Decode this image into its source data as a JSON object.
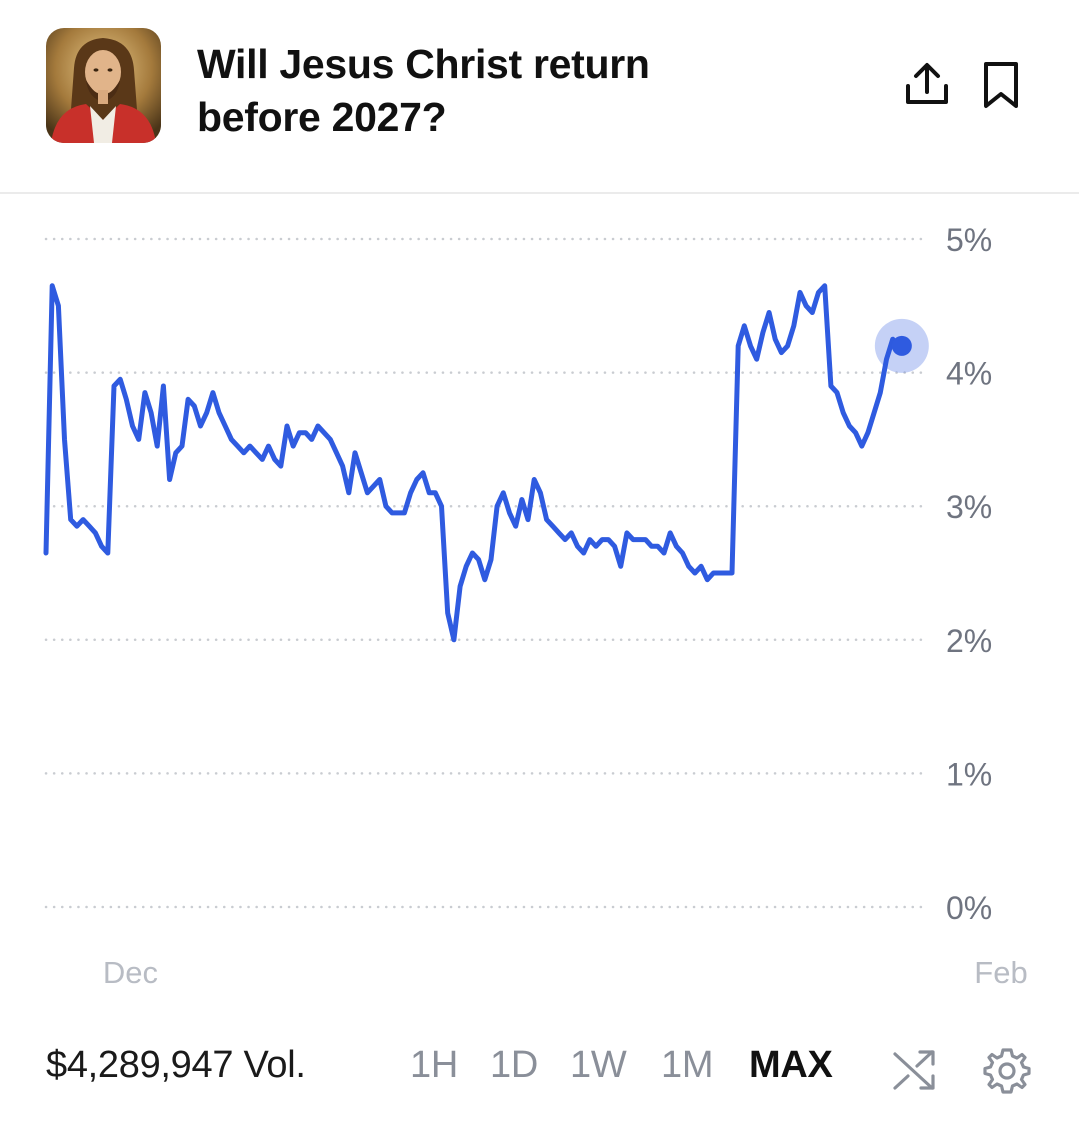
{
  "header": {
    "title": "Will Jesus Christ return before 2027?",
    "avatar_icon": "jesus-portrait-icon",
    "share_icon": "share-upload-icon",
    "bookmark_icon": "bookmark-icon"
  },
  "chart_data": {
    "type": "line",
    "title": "",
    "xlabel": "",
    "ylabel": "",
    "ylim": [
      0,
      5
    ],
    "yticks": [
      "0%",
      "1%",
      "2%",
      "3%",
      "4%",
      "5%"
    ],
    "x_tick_labels": [
      {
        "label": "Dec",
        "index": 5
      },
      {
        "label": "Feb",
        "index": 146
      }
    ],
    "grid": true,
    "legend": "none",
    "series": [
      {
        "color": "#2f5be0",
        "values": [
          2.65,
          4.65,
          4.5,
          3.5,
          2.9,
          2.85,
          2.9,
          2.85,
          2.8,
          2.7,
          2.65,
          3.9,
          3.95,
          3.8,
          3.6,
          3.5,
          3.85,
          3.7,
          3.45,
          3.9,
          3.2,
          3.4,
          3.45,
          3.8,
          3.75,
          3.6,
          3.7,
          3.85,
          3.7,
          3.6,
          3.5,
          3.45,
          3.4,
          3.45,
          3.4,
          3.35,
          3.45,
          3.35,
          3.3,
          3.6,
          3.45,
          3.55,
          3.55,
          3.5,
          3.6,
          3.55,
          3.5,
          3.4,
          3.3,
          3.1,
          3.4,
          3.25,
          3.1,
          3.15,
          3.2,
          3.0,
          2.95,
          2.95,
          2.95,
          3.1,
          3.2,
          3.25,
          3.1,
          3.1,
          3.0,
          2.2,
          2.0,
          2.4,
          2.55,
          2.65,
          2.6,
          2.45,
          2.6,
          3.0,
          3.1,
          2.95,
          2.85,
          3.05,
          2.9,
          3.2,
          3.1,
          2.9,
          2.85,
          2.8,
          2.75,
          2.8,
          2.7,
          2.65,
          2.75,
          2.7,
          2.75,
          2.75,
          2.7,
          2.55,
          2.8,
          2.75,
          2.75,
          2.75,
          2.7,
          2.7,
          2.65,
          2.8,
          2.7,
          2.65,
          2.55,
          2.5,
          2.55,
          2.45,
          2.5,
          2.5,
          2.5,
          2.5,
          4.2,
          4.35,
          4.2,
          4.1,
          4.3,
          4.45,
          4.25,
          4.15,
          4.2,
          4.35,
          4.6,
          4.5,
          4.45,
          4.6,
          4.65,
          3.9,
          3.85,
          3.7,
          3.6,
          3.55,
          3.45,
          3.55,
          3.7,
          3.85,
          4.1,
          4.25,
          4.2
        ],
        "step": 6.18,
        "x0": 46,
        "endpoint_marker": true
      }
    ]
  },
  "footer": {
    "volume": "$4,289,947 Vol.",
    "ranges": [
      "1H",
      "1D",
      "1W",
      "1M",
      "MAX"
    ],
    "active_range": "MAX",
    "shuffle_icon": "shuffle-icon",
    "settings_icon": "gear-icon"
  }
}
